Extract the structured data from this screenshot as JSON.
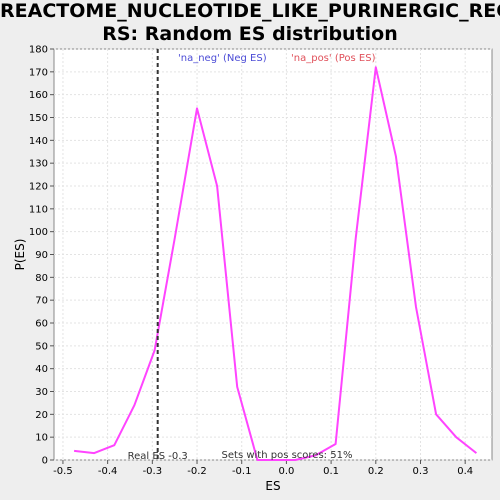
{
  "chart_data": {
    "type": "line",
    "title_line1": "REACTOME_NUCLEOTIDE_LIKE_PURINERGIC_RECEPTO",
    "title_line2": "RS: Random ES distribution",
    "xlabel": "ES",
    "ylabel": "P(ES)",
    "xlim": [
      -0.52,
      0.46
    ],
    "ylim": [
      0,
      180
    ],
    "x_ticks": [
      -0.5,
      -0.4,
      -0.3,
      -0.2,
      -0.1,
      0.0,
      0.1,
      0.2,
      0.3,
      0.4
    ],
    "x_tick_labels": [
      "-0.5",
      "-0.4",
      "-0.3",
      "-0.2",
      "-0.1",
      "0.0",
      "0.1",
      "0.2",
      "0.3",
      "0.4"
    ],
    "y_ticks": [
      0,
      10,
      20,
      30,
      40,
      50,
      60,
      70,
      80,
      90,
      100,
      110,
      120,
      130,
      140,
      150,
      160,
      170,
      180
    ],
    "y_tick_labels": [
      "0",
      "10",
      "20",
      "30",
      "40",
      "50",
      "60",
      "70",
      "80",
      "90",
      "100",
      "110",
      "120",
      "130",
      "140",
      "150",
      "160",
      "170",
      "180"
    ],
    "grid": true,
    "legend": {
      "neg_label": "'na_neg' (Neg ES)",
      "pos_label": "'na_pos' (Pos ES)",
      "neg_color": "#4b4bd6",
      "pos_color": "#e0505a"
    },
    "series": [
      {
        "color": "#ff44ff",
        "x": [
          -0.475,
          -0.43,
          -0.385,
          -0.34,
          -0.295,
          -0.25,
          -0.2,
          -0.155,
          -0.11,
          -0.065,
          -0.02,
          0.02,
          0.065,
          0.11,
          0.155,
          0.2,
          0.245,
          0.29,
          0.335,
          0.38,
          0.425
        ],
        "y": [
          4,
          3,
          6.5,
          24,
          48,
          97,
          154,
          120,
          32,
          0,
          0,
          0,
          2,
          7,
          97,
          172,
          133,
          67,
          20,
          10,
          3
        ]
      }
    ],
    "real_es": {
      "value": -0.288,
      "label": "Real ES -0.3"
    },
    "annotation": "Sets with pos scores: 51%"
  }
}
